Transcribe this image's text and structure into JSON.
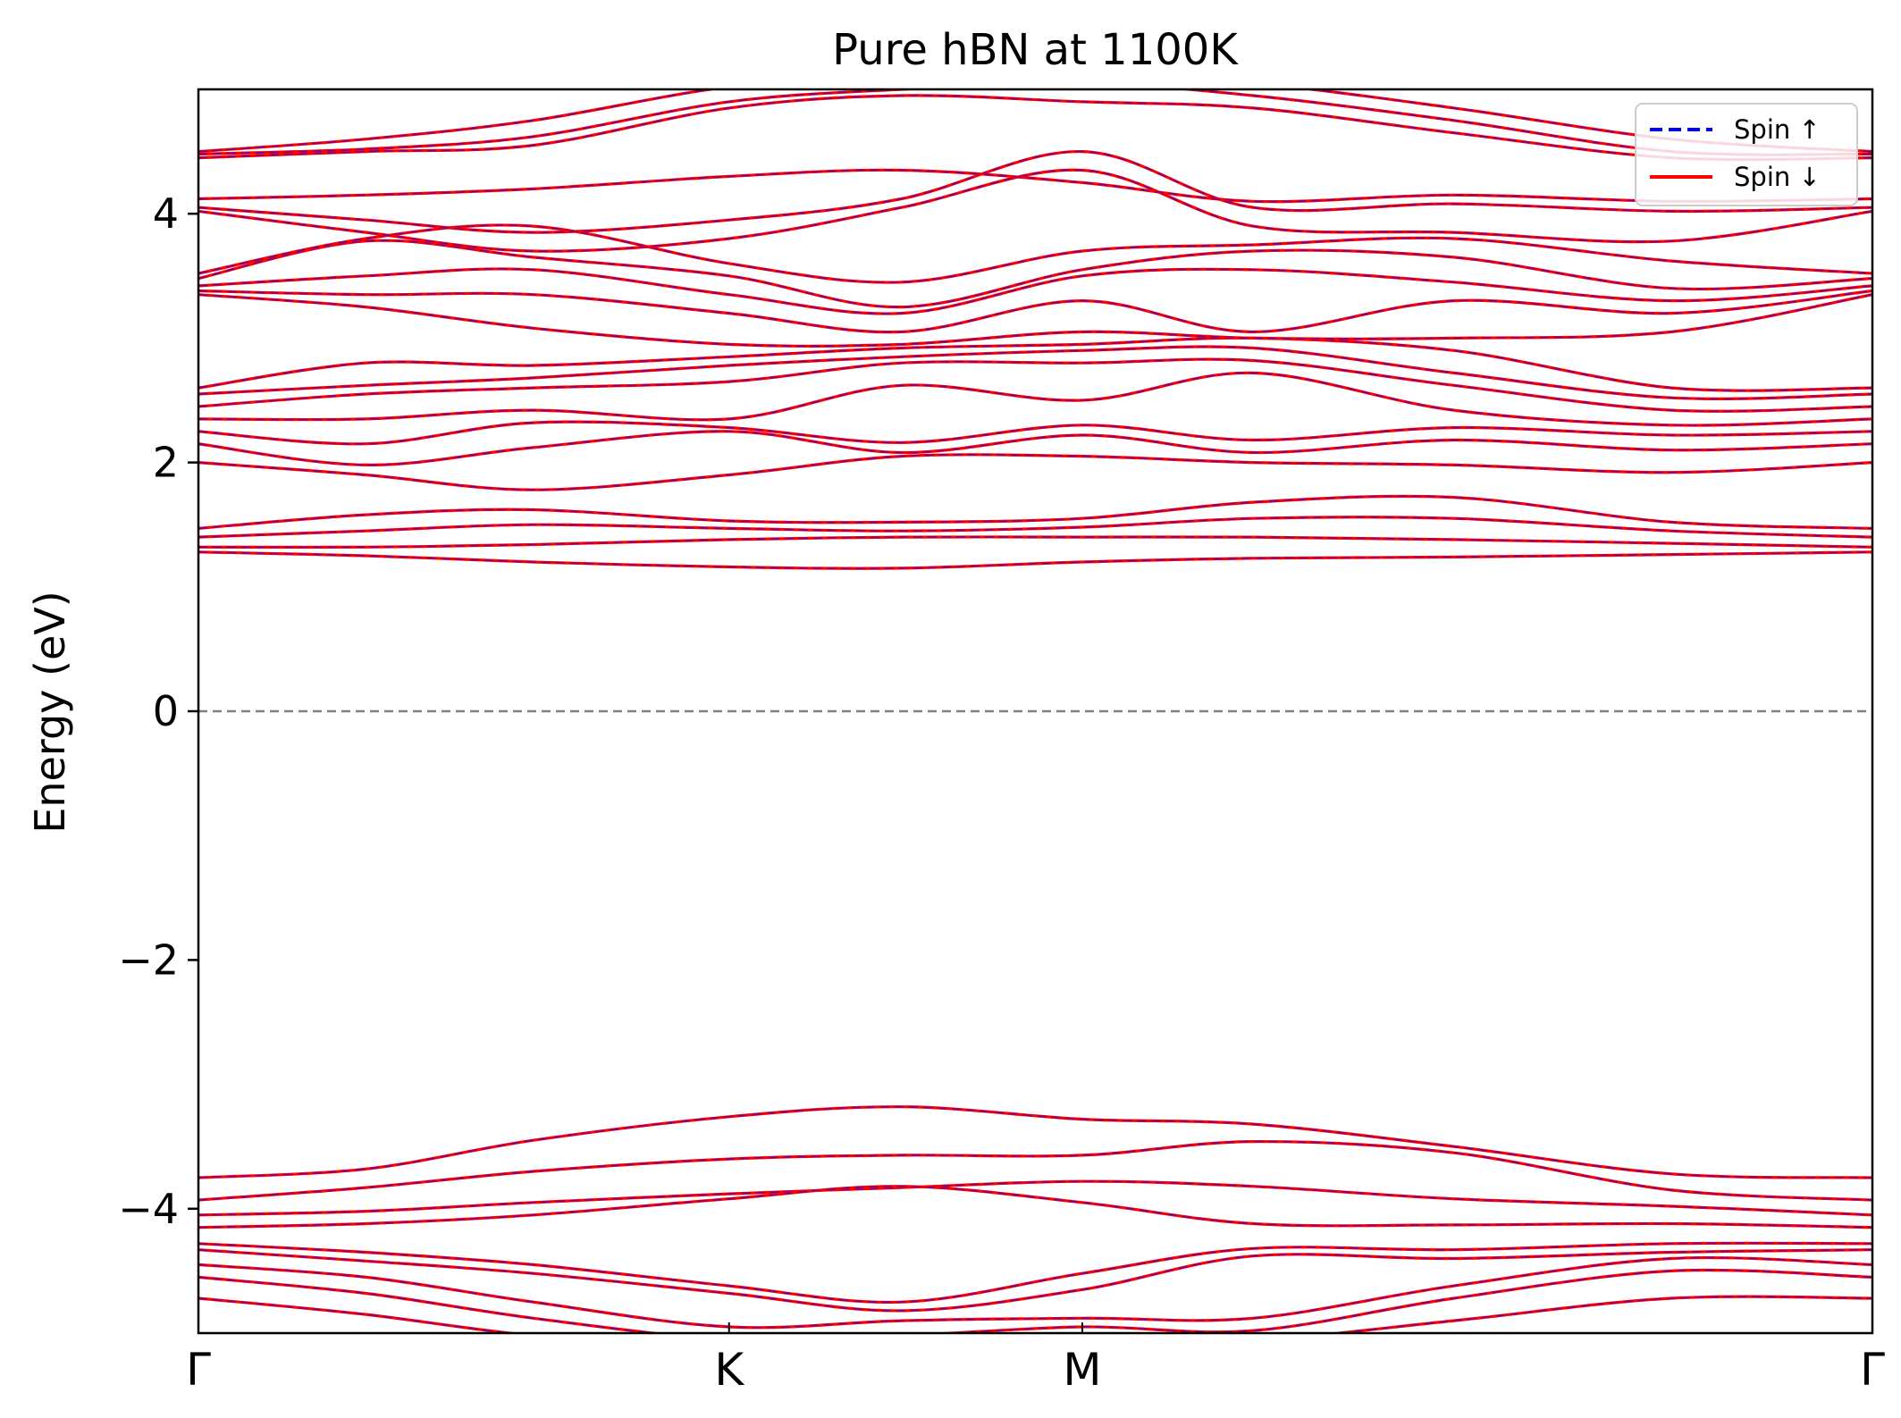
{
  "chart_data": {
    "type": "line",
    "title": "Pure hBN at 1100K",
    "xlabel": "",
    "ylabel": "Energy (eV)",
    "ylim": [
      -5,
      5
    ],
    "yticks": [
      -4,
      -2,
      0,
      2,
      4
    ],
    "ytick_labels": [
      "−4",
      "−2",
      "0",
      "2",
      "4"
    ],
    "x_range": [
      0,
      100
    ],
    "kpoints": [
      {
        "label": "Γ",
        "x": 0
      },
      {
        "label": "K",
        "x": 31.7
      },
      {
        "label": "M",
        "x": 52.8
      },
      {
        "label": "Γ",
        "x": 100
      }
    ],
    "fermi_level": 0,
    "legend": {
      "placement": "top-right",
      "entries": [
        {
          "label": "Spin ↑",
          "color": "#0000ff",
          "style": "dashed"
        },
        {
          "label": "Spin ↓",
          "color": "#ff0000",
          "style": "solid"
        }
      ]
    },
    "band_x": [
      0,
      10,
      20,
      31.7,
      42,
      52.8,
      63,
      75,
      88,
      100
    ],
    "series": [
      {
        "values": [
          -3.75,
          -3.68,
          -3.45,
          -3.26,
          -3.18,
          -3.28,
          -3.32,
          -3.5,
          -3.72,
          -3.75
        ]
      },
      {
        "values": [
          -3.93,
          -3.83,
          -3.7,
          -3.6,
          -3.57,
          -3.57,
          -3.46,
          -3.55,
          -3.85,
          -3.93
        ]
      },
      {
        "values": [
          -4.05,
          -4.02,
          -3.95,
          -3.88,
          -3.83,
          -3.78,
          -3.82,
          -3.92,
          -3.98,
          -4.05
        ]
      },
      {
        "values": [
          -4.15,
          -4.12,
          -4.05,
          -3.92,
          -3.82,
          -3.95,
          -4.12,
          -4.13,
          -4.12,
          -4.15
        ]
      },
      {
        "values": [
          -4.28,
          -4.35,
          -4.45,
          -4.62,
          -4.75,
          -4.52,
          -4.32,
          -4.33,
          -4.28,
          -4.28
        ]
      },
      {
        "values": [
          -4.33,
          -4.42,
          -4.52,
          -4.68,
          -4.82,
          -4.65,
          -4.38,
          -4.4,
          -4.35,
          -4.33
        ]
      },
      {
        "values": [
          -4.45,
          -4.55,
          -4.75,
          -4.95,
          -4.9,
          -4.88,
          -4.88,
          -4.62,
          -4.4,
          -4.45
        ]
      },
      {
        "values": [
          -4.55,
          -4.68,
          -4.88,
          -5.05,
          -5.02,
          -4.95,
          -4.98,
          -4.72,
          -4.5,
          -4.55
        ]
      },
      {
        "values": [
          -4.72,
          -4.85,
          -5.02,
          -5.12,
          -5.1,
          -5.08,
          -5.06,
          -4.9,
          -4.72,
          -4.72
        ]
      },
      {
        "values": [
          1.28,
          1.25,
          1.2,
          1.16,
          1.15,
          1.2,
          1.23,
          1.24,
          1.26,
          1.28
        ]
      },
      {
        "values": [
          1.32,
          1.32,
          1.34,
          1.38,
          1.4,
          1.4,
          1.4,
          1.38,
          1.35,
          1.32
        ]
      },
      {
        "values": [
          1.4,
          1.45,
          1.5,
          1.47,
          1.45,
          1.48,
          1.55,
          1.55,
          1.45,
          1.4
        ]
      },
      {
        "values": [
          1.47,
          1.58,
          1.62,
          1.53,
          1.52,
          1.55,
          1.68,
          1.72,
          1.52,
          1.47
        ]
      },
      {
        "values": [
          2.0,
          1.9,
          1.78,
          1.9,
          2.05,
          2.05,
          2.0,
          1.98,
          1.92,
          2.0
        ]
      },
      {
        "values": [
          2.15,
          1.98,
          2.12,
          2.25,
          2.08,
          2.22,
          2.08,
          2.18,
          2.1,
          2.15
        ]
      },
      {
        "values": [
          2.25,
          2.15,
          2.32,
          2.28,
          2.16,
          2.3,
          2.18,
          2.28,
          2.22,
          2.25
        ]
      },
      {
        "values": [
          2.35,
          2.35,
          2.42,
          2.35,
          2.62,
          2.5,
          2.72,
          2.42,
          2.3,
          2.35
        ]
      },
      {
        "values": [
          2.45,
          2.55,
          2.6,
          2.65,
          2.8,
          2.8,
          2.82,
          2.62,
          2.42,
          2.45
        ]
      },
      {
        "values": [
          2.55,
          2.62,
          2.68,
          2.78,
          2.85,
          2.9,
          2.92,
          2.72,
          2.52,
          2.55
        ]
      },
      {
        "values": [
          2.6,
          2.8,
          2.78,
          2.85,
          2.92,
          2.95,
          3.0,
          2.9,
          2.6,
          2.6
        ]
      },
      {
        "values": [
          3.35,
          3.25,
          3.08,
          2.95,
          2.95,
          3.05,
          3.0,
          3.0,
          3.05,
          3.35
        ]
      },
      {
        "values": [
          3.38,
          3.35,
          3.35,
          3.2,
          3.05,
          3.3,
          3.05,
          3.3,
          3.2,
          3.38
        ]
      },
      {
        "values": [
          3.42,
          3.5,
          3.55,
          3.35,
          3.2,
          3.5,
          3.55,
          3.45,
          3.3,
          3.42
        ]
      },
      {
        "values": [
          3.48,
          3.78,
          3.65,
          3.5,
          3.25,
          3.55,
          3.7,
          3.65,
          3.4,
          3.48
        ]
      },
      {
        "values": [
          3.52,
          3.8,
          3.9,
          3.6,
          3.45,
          3.7,
          3.75,
          3.8,
          3.62,
          3.52
        ]
      },
      {
        "values": [
          4.02,
          3.85,
          3.7,
          3.8,
          4.05,
          4.35,
          3.9,
          3.85,
          3.78,
          4.02
        ]
      },
      {
        "values": [
          4.05,
          3.95,
          3.85,
          3.95,
          4.12,
          4.5,
          4.05,
          4.08,
          4.02,
          4.05
        ]
      },
      {
        "values": [
          4.12,
          4.15,
          4.2,
          4.3,
          4.35,
          4.25,
          4.1,
          4.15,
          4.1,
          4.12
        ]
      },
      {
        "values": [
          4.45,
          4.5,
          4.55,
          4.85,
          4.95,
          4.9,
          4.85,
          4.65,
          4.45,
          4.45
        ]
      },
      {
        "values": [
          4.48,
          4.52,
          4.62,
          4.9,
          5.0,
          5.05,
          4.95,
          4.75,
          4.5,
          4.48
        ]
      },
      {
        "values": [
          4.5,
          4.6,
          4.75,
          5.02,
          5.1,
          5.12,
          5.05,
          4.85,
          4.6,
          4.5
        ]
      }
    ]
  }
}
